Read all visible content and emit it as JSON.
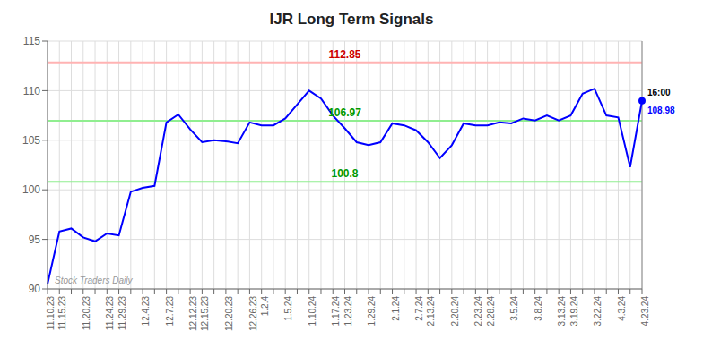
{
  "chart_data": {
    "type": "line",
    "title": "IJR Long Term Signals",
    "categories": [
      "11.10.23",
      "11.15.23",
      null,
      "11.20.23",
      null,
      "11.24.23",
      "11.29.23",
      null,
      "12.4.23",
      null,
      "12.7.23",
      null,
      "12.12.23",
      "12.15.23",
      null,
      "12.20.23",
      null,
      "12.26.23",
      "1.2.4",
      null,
      "1.5.24",
      null,
      "1.10.24",
      null,
      "1.17.24",
      "1.23.24",
      null,
      "1.29.24",
      null,
      "2.1.24",
      null,
      "2.7.24",
      "2.13.24",
      null,
      "2.20.24",
      null,
      "2.23.24",
      "2.28.24",
      null,
      "3.5.24",
      null,
      "3.8.24",
      null,
      "3.13.24",
      "3.19.24",
      null,
      "3.22.24",
      null,
      "4.3.24",
      null,
      "4.23.24"
    ],
    "values": [
      90.5,
      95.8,
      96.1,
      95.2,
      94.8,
      95.6,
      95.4,
      99.8,
      100.2,
      100.4,
      106.8,
      107.6,
      106.1,
      104.8,
      105.0,
      104.9,
      104.7,
      106.8,
      106.5,
      106.5,
      107.2,
      108.6,
      110.0,
      109.2,
      107.5,
      106.2,
      104.8,
      104.5,
      104.8,
      106.7,
      106.5,
      106.0,
      104.8,
      103.2,
      104.5,
      106.7,
      106.5,
      106.5,
      106.8,
      106.7,
      107.2,
      107.0,
      107.5,
      107.0,
      107.5,
      109.7,
      110.2,
      107.5,
      107.3,
      102.3,
      108.98
    ],
    "color": "blue",
    "reference_lines": [
      {
        "value": 112.85,
        "label": "112.85",
        "color": "#ffb3b3",
        "label_color": "#cc0000"
      },
      {
        "value": 106.97,
        "label": "106.97",
        "color": "#90ee90",
        "label_color": "#009900"
      },
      {
        "value": 100.8,
        "label": "100.8",
        "color": "#90ee90",
        "label_color": "#009900"
      }
    ],
    "last_point": {
      "time": "16:00",
      "value": 108.98,
      "label": "108.98"
    },
    "watermark": "Stock Traders Daily",
    "ylim": [
      90,
      115
    ],
    "yticks": [
      90,
      95,
      100,
      105,
      110,
      115
    ],
    "grid": true
  }
}
